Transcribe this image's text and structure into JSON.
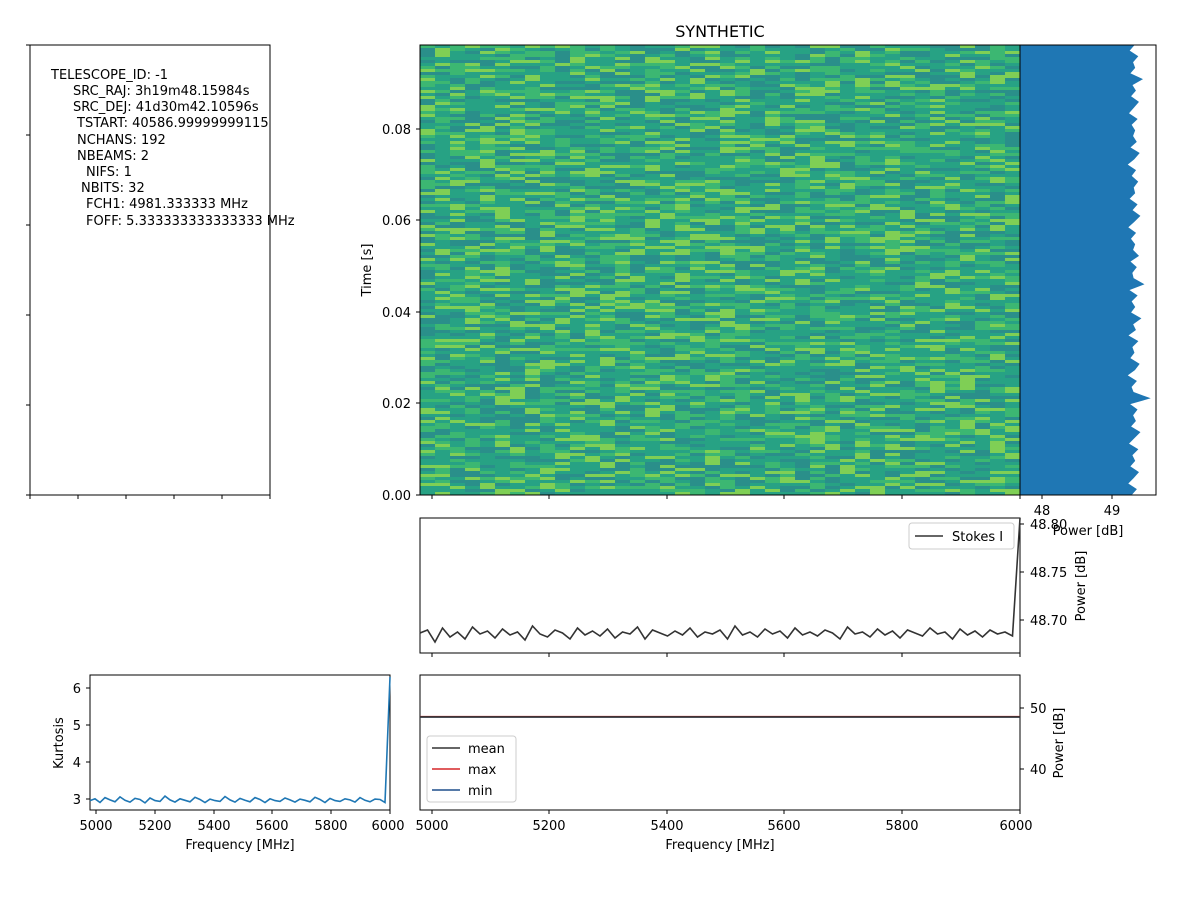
{
  "chart_data": [
    {
      "panel": "header",
      "type": "table",
      "lines": [
        "TELESCOPE_ID: -1",
        "SRC_RAJ: 3h19m48.15984s",
        "SRC_DEJ: 41d30m42.10596s",
        "TSTART: 40586.99999999115",
        "NCHANS: 192",
        "NBEAMS: 2",
        "NIFS: 1",
        "NBITS: 32",
        "FCH1: 4981.333333 MHz",
        "FOFF: 5.333333333333333 MHz"
      ]
    },
    {
      "panel": "waterfall",
      "type": "heatmap",
      "title": "SYNTHETIC",
      "ylabel": "Time [s]",
      "xlim": [
        4981.3,
        6000
      ],
      "ylim": [
        0,
        0.098
      ],
      "yticks": [
        "0.00",
        "0.02",
        "0.04",
        "0.06",
        "0.08"
      ],
      "colormap": [
        "#2a8f8a",
        "#21a585",
        "#3cb772",
        "#7fcf55"
      ]
    },
    {
      "panel": "time-series",
      "type": "line",
      "xlabel": "Power [dB]",
      "xlim": [
        47.8,
        49.7
      ],
      "xticks": [
        "48",
        "49"
      ],
      "ylim": [
        0,
        0.098
      ],
      "series_color": "#1f77b4",
      "series": [
        {
          "values": [
            49.35,
            49.42,
            49.3,
            49.38,
            49.45,
            49.33,
            49.4,
            49.36,
            49.44,
            49.31,
            49.39,
            49.47,
            49.34,
            49.41,
            49.37,
            49.43,
            49.32,
            49.6,
            49.38,
            49.35,
            49.42,
            49.29,
            49.4,
            49.46,
            49.33,
            49.39,
            49.36,
            49.44,
            49.3,
            49.41,
            49.37,
            49.48,
            49.34,
            49.4,
            49.35,
            49.43,
            49.31,
            49.52,
            49.38,
            49.36,
            49.42,
            49.33,
            49.45,
            49.37,
            49.4,
            49.34,
            49.41,
            49.3,
            49.39,
            49.47,
            49.36,
            49.43,
            49.32,
            49.4,
            49.38,
            49.44,
            49.35,
            49.41,
            49.29,
            49.39,
            49.46,
            49.33,
            49.42,
            49.37,
            49.4,
            49.35,
            49.43,
            49.31,
            49.38,
            49.45,
            49.34,
            49.41,
            49.36,
            49.5,
            49.33,
            49.4,
            49.37,
            49.44,
            49.32,
            49.39
          ]
        }
      ]
    },
    {
      "panel": "spectrum",
      "type": "line",
      "ylabel": "Power [dB]",
      "xlim": [
        4981.3,
        6000
      ],
      "ylim": [
        48.665,
        48.8
      ],
      "yticks": [
        "48.70",
        "48.75",
        "48.80"
      ],
      "legend": "top-right",
      "series": [
        {
          "name": "Stokes I",
          "color": "#333333",
          "values": [
            48.685,
            48.688,
            48.676,
            48.69,
            48.681,
            48.686,
            48.679,
            48.691,
            48.684,
            48.687,
            48.68,
            48.689,
            48.683,
            48.686,
            48.678,
            48.692,
            48.684,
            48.681,
            48.688,
            48.685,
            48.679,
            48.69,
            48.683,
            48.687,
            48.682,
            48.689,
            48.68,
            48.686,
            48.684,
            48.691,
            48.679,
            48.688,
            48.685,
            48.682,
            48.687,
            48.683,
            48.69,
            48.681,
            48.686,
            48.684,
            48.688,
            48.679,
            48.692,
            48.683,
            48.686,
            48.681,
            48.689,
            48.684,
            48.687,
            48.68,
            48.69,
            48.683,
            48.686,
            48.682,
            48.688,
            48.685,
            48.679,
            48.691,
            48.684,
            48.686,
            48.681,
            48.689,
            48.683,
            48.687,
            48.68,
            48.688,
            48.685,
            48.682,
            48.69,
            48.684,
            48.686,
            48.679,
            48.689,
            48.683,
            48.687,
            48.681,
            48.688,
            48.684,
            48.686,
            48.682,
            48.8
          ]
        }
      ]
    },
    {
      "panel": "kurtosis",
      "type": "line",
      "ylabel": "Kurtosis",
      "xlabel": "Frequency [MHz]",
      "xlim": [
        4981.3,
        6000
      ],
      "xticks": [
        "5000",
        "5200",
        "5400",
        "5600",
        "5800",
        "6000"
      ],
      "ylim": [
        2.75,
        6.35
      ],
      "yticks": [
        "3",
        "4",
        "5",
        "6"
      ],
      "series_color": "#1f77b4",
      "series": [
        {
          "values": [
            3.0,
            3.05,
            2.95,
            3.08,
            3.02,
            2.97,
            3.1,
            3.01,
            2.96,
            3.06,
            3.03,
            2.94,
            3.07,
            3.0,
            2.98,
            3.12,
            3.02,
            2.96,
            3.05,
            3.01,
            2.97,
            3.09,
            3.03,
            2.95,
            3.04,
            3.0,
            2.98,
            3.11,
            3.02,
            2.96,
            3.06,
            3.01,
            2.97,
            3.08,
            3.03,
            2.95,
            3.05,
            3.0,
            2.98,
            3.07,
            3.02,
            2.96,
            3.04,
            3.01,
            2.97,
            3.09,
            3.03,
            2.95,
            3.06,
            3.0,
            2.98,
            3.05,
            3.02,
            2.96,
            3.08,
            3.01,
            2.97,
            3.04,
            3.03,
            2.95,
            6.3
          ]
        }
      ]
    },
    {
      "panel": "statistics",
      "type": "line",
      "ylabel": "Power [dB]",
      "xlabel": "Frequency [MHz]",
      "xlim": [
        4981.3,
        6000
      ],
      "xticks": [
        "5000",
        "5200",
        "5400",
        "5600",
        "5800",
        "6000"
      ],
      "ylim": [
        33.5,
        55.5
      ],
      "yticks": [
        "40",
        "50"
      ],
      "legend": "lower-left",
      "series": [
        {
          "name": "mean",
          "color": "#333333",
          "values": [
            48.68,
            48.68
          ]
        },
        {
          "name": "max",
          "color": "#d62728",
          "values": [
            48.7,
            48.7
          ]
        },
        {
          "name": "min",
          "color": "#1f4e8c",
          "values": [
            48.66,
            48.66
          ]
        }
      ]
    }
  ]
}
